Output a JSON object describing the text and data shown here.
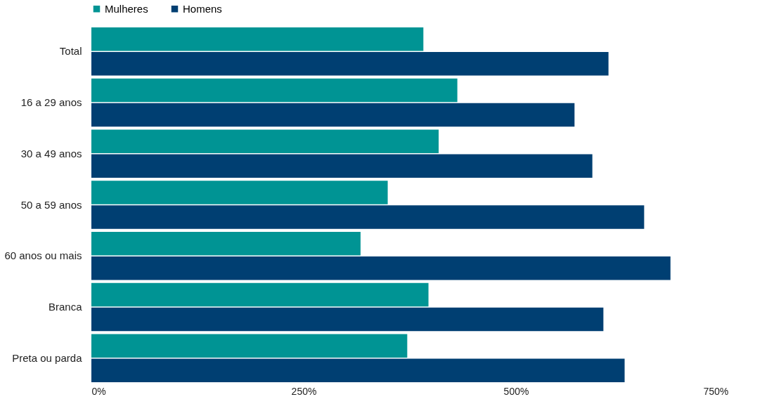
{
  "chart_data": {
    "type": "bar",
    "orientation": "horizontal",
    "categories": [
      "Total",
      "16 a 29 anos",
      "30 a 49 anos",
      "50 a 59 anos",
      "60 anos ou mais",
      "Branca",
      "Preta ou parda"
    ],
    "series": [
      {
        "name": "Mulheres",
        "color": "#009494",
        "values": [
          391,
          431,
          409,
          349,
          317,
          397,
          372
        ]
      },
      {
        "name": "Homens",
        "color": "#003f72",
        "values": [
          609,
          569,
          590,
          651,
          682,
          603,
          628
        ]
      }
    ],
    "xlim": [
      0,
      750
    ],
    "xticks": [
      {
        "value": 0,
        "label": "0%"
      },
      {
        "value": 250,
        "label": "250%"
      },
      {
        "value": 500,
        "label": "500%"
      },
      {
        "value": 750,
        "label": "750%"
      }
    ],
    "grid": false,
    "legend": "top"
  }
}
